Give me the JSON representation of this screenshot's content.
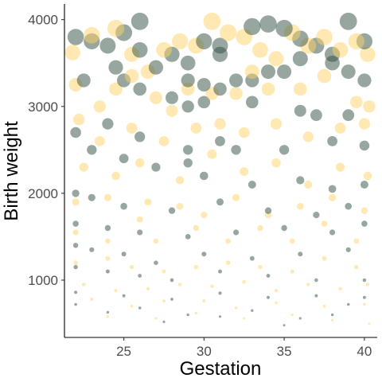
{
  "chart_data": {
    "type": "scatter",
    "title": "",
    "xlabel": "Gestation",
    "ylabel": "Birth weight",
    "xlim": [
      21.3,
      40.8
    ],
    "ylim": [
      340,
      4180
    ],
    "x_ticks": [
      25,
      30,
      35,
      40
    ],
    "y_ticks": [
      1000,
      2000,
      3000,
      4000
    ],
    "grid": false,
    "legend": "none",
    "size_by": "y",
    "colors": {
      "series_a": "#2f4f3f",
      "series_b": "#ffd166"
    },
    "series": [
      {
        "color_key": "series_a",
        "points": [
          [
            22,
            3800
          ],
          [
            23,
            3750
          ],
          [
            24,
            3700
          ],
          [
            25,
            3850
          ],
          [
            26,
            3980
          ],
          [
            26,
            3650
          ],
          [
            24.5,
            3450
          ],
          [
            25,
            3300
          ],
          [
            26,
            3200
          ],
          [
            22.5,
            3300
          ],
          [
            27,
            3450
          ],
          [
            28,
            3600
          ],
          [
            29,
            3500
          ],
          [
            30,
            3750
          ],
          [
            31,
            3700
          ],
          [
            31,
            3600
          ],
          [
            33,
            3920
          ],
          [
            34,
            3950
          ],
          [
            35,
            3900
          ],
          [
            36,
            3780
          ],
          [
            37,
            3700
          ],
          [
            38,
            3600
          ],
          [
            39,
            3980
          ],
          [
            40,
            3750
          ],
          [
            39,
            3400
          ],
          [
            40,
            3300
          ],
          [
            38,
            3500
          ],
          [
            36,
            3550
          ],
          [
            35,
            3400
          ],
          [
            34,
            3400
          ],
          [
            33,
            3300
          ],
          [
            32,
            3300
          ],
          [
            31,
            3200
          ],
          [
            30,
            3250
          ],
          [
            29,
            3300
          ],
          [
            29,
            3000
          ],
          [
            28,
            3100
          ],
          [
            30,
            3050
          ],
          [
            33,
            3050
          ],
          [
            36,
            2950
          ],
          [
            37,
            2900
          ],
          [
            39,
            2900
          ],
          [
            24,
            2800
          ],
          [
            22,
            2700
          ],
          [
            26,
            2650
          ],
          [
            29,
            2500
          ],
          [
            31,
            2600
          ],
          [
            32,
            2500
          ],
          [
            35,
            2500
          ],
          [
            38,
            2600
          ],
          [
            40,
            2550
          ],
          [
            23,
            2500
          ],
          [
            25,
            2400
          ],
          [
            27,
            2300
          ],
          [
            29,
            2350
          ],
          [
            30,
            2200
          ],
          [
            33,
            2100
          ],
          [
            36,
            2150
          ],
          [
            38,
            2050
          ],
          [
            40,
            2100
          ],
          [
            22,
            2000
          ],
          [
            23,
            1950
          ],
          [
            25,
            1850
          ],
          [
            28,
            1800
          ],
          [
            31,
            1900
          ],
          [
            34,
            1800
          ],
          [
            37,
            1750
          ],
          [
            39,
            1850
          ],
          [
            22,
            1650
          ],
          [
            24,
            1600
          ],
          [
            26,
            1550
          ],
          [
            29,
            1500
          ],
          [
            32,
            1550
          ],
          [
            35,
            1600
          ],
          [
            38,
            1550
          ],
          [
            40,
            1650
          ],
          [
            22,
            1400
          ],
          [
            23,
            1350
          ],
          [
            25,
            1300
          ],
          [
            27,
            1200
          ],
          [
            30,
            1300
          ],
          [
            33,
            1250
          ],
          [
            36,
            1300
          ],
          [
            39,
            1350
          ],
          [
            22,
            1150
          ],
          [
            24,
            1100
          ],
          [
            26,
            1050
          ],
          [
            28,
            1000
          ],
          [
            31,
            1100
          ],
          [
            34,
            1050
          ],
          [
            37,
            1000
          ],
          [
            40,
            1000
          ],
          [
            22,
            860
          ],
          [
            25,
            820
          ],
          [
            28,
            780
          ],
          [
            31,
            850
          ],
          [
            34,
            800
          ],
          [
            37,
            820
          ],
          [
            40,
            800
          ],
          [
            22,
            720
          ],
          [
            26,
            680
          ],
          [
            29,
            600
          ],
          [
            33,
            650
          ],
          [
            36,
            560
          ],
          [
            39,
            720
          ],
          [
            24,
            630
          ],
          [
            27.5,
            520
          ],
          [
            31,
            580
          ],
          [
            35,
            480
          ],
          [
            38,
            600
          ]
        ]
      },
      {
        "color_key": "series_b",
        "points": [
          [
            21.8,
            3620
          ],
          [
            23,
            3820
          ],
          [
            24.5,
            3900
          ],
          [
            25.5,
            3600
          ],
          [
            26.5,
            3400
          ],
          [
            27.5,
            3650
          ],
          [
            28.5,
            3750
          ],
          [
            29.5,
            3700
          ],
          [
            30.5,
            3980
          ],
          [
            31.5,
            3850
          ],
          [
            32.5,
            3800
          ],
          [
            33.5,
            3650
          ],
          [
            34.5,
            3550
          ],
          [
            35.5,
            3850
          ],
          [
            36.5,
            3700
          ],
          [
            37.5,
            3800
          ],
          [
            38.5,
            3650
          ],
          [
            39.5,
            3750
          ],
          [
            40.2,
            3600
          ],
          [
            22,
            3250
          ],
          [
            23.5,
            3000
          ],
          [
            24.5,
            3200
          ],
          [
            25.5,
            3350
          ],
          [
            27,
            3100
          ],
          [
            28,
            2950
          ],
          [
            29,
            3200
          ],
          [
            30.5,
            3150
          ],
          [
            32,
            3150
          ],
          [
            33,
            3400
          ],
          [
            34,
            3200
          ],
          [
            36,
            3200
          ],
          [
            37.5,
            3350
          ],
          [
            39.5,
            3050
          ],
          [
            40.3,
            3000
          ],
          [
            22.2,
            2850
          ],
          [
            23.5,
            2600
          ],
          [
            25.5,
            2750
          ],
          [
            27.5,
            2600
          ],
          [
            29.5,
            2750
          ],
          [
            31,
            2800
          ],
          [
            32.5,
            2700
          ],
          [
            34.5,
            2800
          ],
          [
            36.5,
            2650
          ],
          [
            38.5,
            2750
          ],
          [
            40,
            2800
          ],
          [
            22.5,
            2300
          ],
          [
            24.5,
            2200
          ],
          [
            26,
            2350
          ],
          [
            28.5,
            2150
          ],
          [
            30.5,
            2450
          ],
          [
            32.5,
            2250
          ],
          [
            34.5,
            2350
          ],
          [
            36.5,
            2100
          ],
          [
            38.5,
            2300
          ],
          [
            40.2,
            2200
          ],
          [
            22,
            1900
          ],
          [
            24,
            1950
          ],
          [
            26.5,
            1900
          ],
          [
            28.5,
            1850
          ],
          [
            30,
            1750
          ],
          [
            32,
            1950
          ],
          [
            34,
            1750
          ],
          [
            36,
            1850
          ],
          [
            38,
            1950
          ],
          [
            40,
            1800
          ],
          [
            22,
            1550
          ],
          [
            24,
            1450
          ],
          [
            26,
            1700
          ],
          [
            27,
            1450
          ],
          [
            29.5,
            1600
          ],
          [
            31.5,
            1450
          ],
          [
            33.5,
            1600
          ],
          [
            35.5,
            1450
          ],
          [
            37.5,
            1650
          ],
          [
            39.5,
            1450
          ],
          [
            22,
            1200
          ],
          [
            24,
            1250
          ],
          [
            25.5,
            1150
          ],
          [
            27.5,
            1100
          ],
          [
            29.5,
            1150
          ],
          [
            31.5,
            1200
          ],
          [
            33.5,
            1150
          ],
          [
            35.5,
            1100
          ],
          [
            37.5,
            1250
          ],
          [
            39.5,
            1150
          ],
          [
            22.5,
            950
          ],
          [
            24.5,
            880
          ],
          [
            26.5,
            900
          ],
          [
            28.5,
            950
          ],
          [
            30.5,
            930
          ],
          [
            32.5,
            980
          ],
          [
            34.5,
            880
          ],
          [
            36.5,
            950
          ],
          [
            38.5,
            900
          ],
          [
            40.2,
            950
          ],
          [
            23,
            780
          ],
          [
            25.5,
            700
          ],
          [
            27.5,
            760
          ],
          [
            30,
            760
          ],
          [
            32,
            680
          ],
          [
            34.5,
            740
          ],
          [
            37.5,
            700
          ],
          [
            40,
            720
          ],
          [
            24,
            580
          ],
          [
            27,
            560
          ],
          [
            29.5,
            620
          ],
          [
            32.5,
            560
          ],
          [
            35.5,
            600
          ],
          [
            38,
            540
          ],
          [
            40.3,
            500
          ]
        ]
      }
    ]
  }
}
